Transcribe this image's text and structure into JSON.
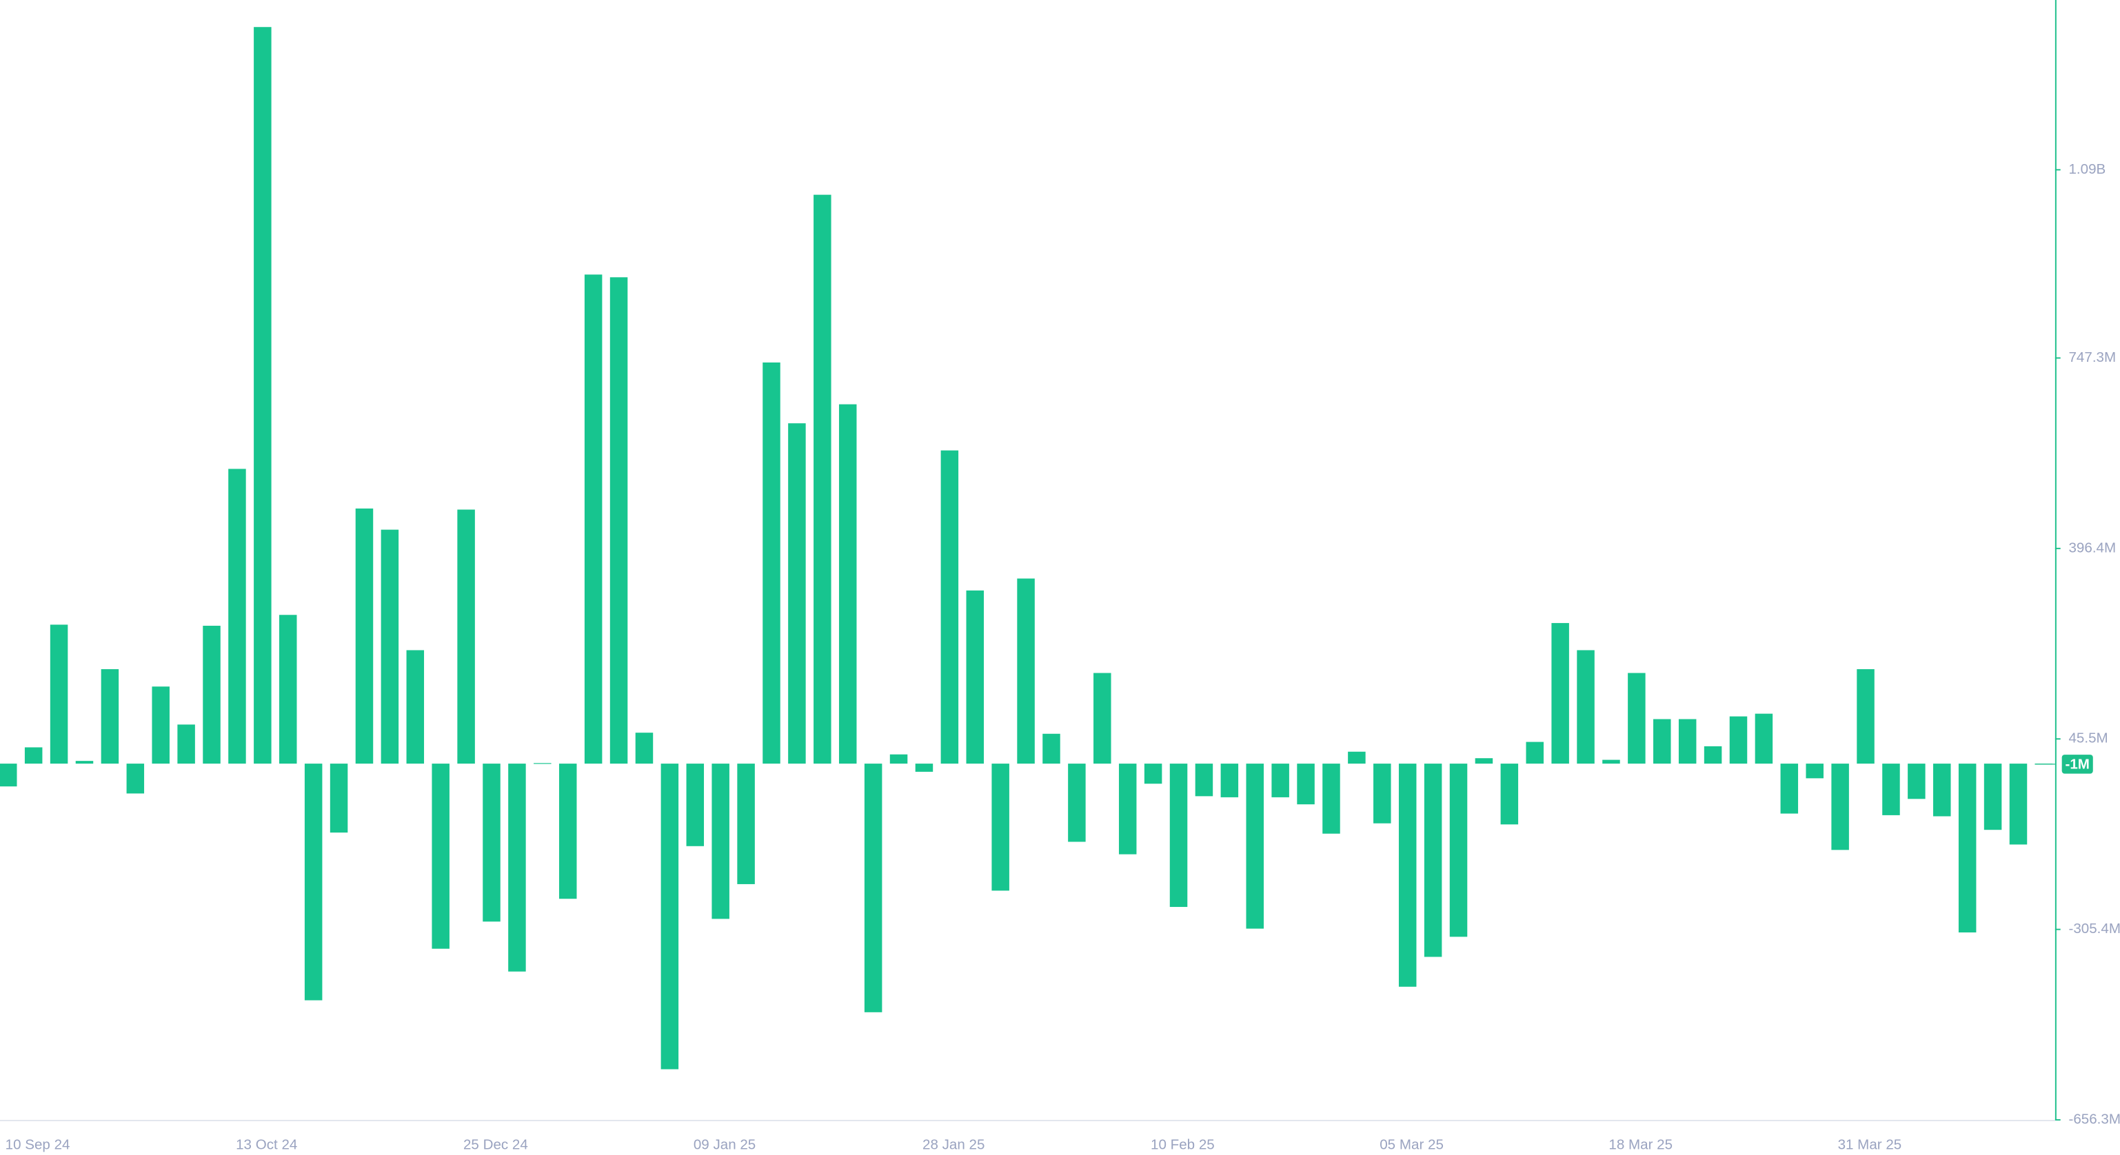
{
  "chart_data": {
    "type": "bar",
    "color": "#17c58f",
    "categories": [
      null,
      "10 Sep 24",
      null,
      null,
      null,
      null,
      null,
      null,
      null,
      null,
      "13 Oct 24",
      null,
      null,
      null,
      null,
      null,
      null,
      null,
      null,
      "25 Dec 24",
      null,
      null,
      null,
      null,
      null,
      null,
      null,
      null,
      "09 Jan 25",
      null,
      null,
      null,
      null,
      null,
      null,
      null,
      null,
      "28 Jan 25",
      null,
      null,
      null,
      null,
      null,
      null,
      null,
      null,
      "10 Feb 25",
      null,
      null,
      null,
      null,
      null,
      null,
      null,
      null,
      "05 Mar 25",
      null,
      null,
      null,
      null,
      null,
      null,
      null,
      null,
      "18 Mar 25",
      null,
      null,
      null,
      null,
      null,
      null,
      null,
      null,
      "31 Mar 25",
      null,
      null,
      null,
      null,
      null,
      null,
      null
    ],
    "values": [
      -42,
      30,
      256,
      5,
      174,
      -55,
      142,
      72,
      254,
      543,
      1357,
      274,
      -436,
      -127,
      470,
      431,
      209,
      -341,
      468,
      -291,
      -383,
      1,
      -249,
      901,
      896,
      57,
      -563,
      -152,
      -286,
      -222,
      739,
      627,
      1048,
      662,
      -458,
      17,
      -15,
      577,
      319,
      -234,
      341,
      55,
      -144,
      167,
      -167,
      -37,
      -264,
      -60,
      -62,
      -304,
      -62,
      -75,
      -129,
      22,
      -110,
      -411,
      -356,
      -319,
      10,
      -112,
      40,
      259,
      209,
      7,
      167,
      82,
      82,
      32,
      87,
      92,
      -92,
      -27,
      -159,
      174,
      -95,
      -65,
      -97,
      -311,
      -122,
      -149,
      -1
    ],
    "ylim": [
      -656.3,
      1406.8
    ],
    "yticks": [
      {
        "value": -656.3,
        "label": "-656.3M"
      },
      {
        "value": -305.4,
        "label": "-305.4M"
      },
      {
        "value": 45.5,
        "label": "45.5M"
      },
      {
        "value": 396.4,
        "label": "396.4M"
      },
      {
        "value": 747.3,
        "label": "747.3M"
      },
      {
        "value": 1094,
        "label": "1.09B"
      }
    ],
    "current_value": {
      "value": -1,
      "label": "-1M"
    }
  }
}
